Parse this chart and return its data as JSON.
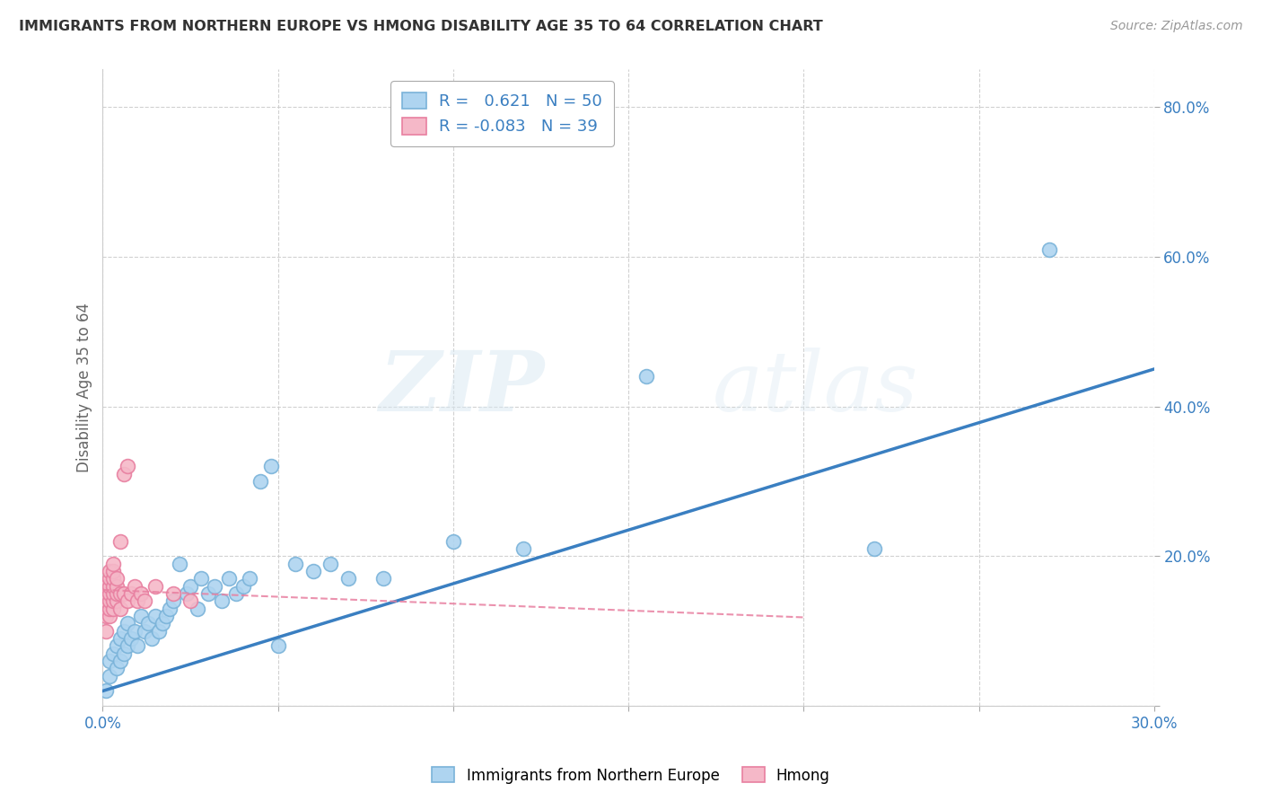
{
  "title": "IMMIGRANTS FROM NORTHERN EUROPE VS HMONG DISABILITY AGE 35 TO 64 CORRELATION CHART",
  "source": "Source: ZipAtlas.com",
  "ylabel": "Disability Age 35 to 64",
  "xlim": [
    0.0,
    0.3
  ],
  "ylim": [
    0.0,
    0.85
  ],
  "xticks": [
    0.0,
    0.05,
    0.1,
    0.15,
    0.2,
    0.25,
    0.3
  ],
  "xticklabels": [
    "0.0%",
    "",
    "",
    "",
    "",
    "",
    "30.0%"
  ],
  "yticks": [
    0.0,
    0.2,
    0.4,
    0.6,
    0.8
  ],
  "yticklabels": [
    "",
    "20.0%",
    "40.0%",
    "60.0%",
    "80.0%"
  ],
  "r_blue": 0.621,
  "n_blue": 50,
  "r_pink": -0.083,
  "n_pink": 39,
  "blue_color": "#aed4f0",
  "blue_edge_color": "#7ab3d9",
  "pink_color": "#f5b8c8",
  "pink_edge_color": "#e87fa0",
  "trend_blue_color": "#3a7fc1",
  "trend_pink_color": "#e87fa0",
  "legend_label_blue": "Immigrants from Northern Europe",
  "legend_label_pink": "Hmong",
  "watermark_zip": "ZIP",
  "watermark_atlas": "atlas",
  "blue_x": [
    0.001,
    0.002,
    0.002,
    0.003,
    0.004,
    0.004,
    0.005,
    0.005,
    0.006,
    0.006,
    0.007,
    0.007,
    0.008,
    0.009,
    0.01,
    0.011,
    0.012,
    0.013,
    0.014,
    0.015,
    0.016,
    0.017,
    0.018,
    0.019,
    0.02,
    0.022,
    0.024,
    0.025,
    0.027,
    0.028,
    0.03,
    0.032,
    0.034,
    0.036,
    0.038,
    0.04,
    0.042,
    0.045,
    0.048,
    0.05,
    0.055,
    0.06,
    0.065,
    0.07,
    0.08,
    0.1,
    0.12,
    0.155,
    0.22,
    0.27
  ],
  "blue_y": [
    0.02,
    0.04,
    0.06,
    0.07,
    0.05,
    0.08,
    0.06,
    0.09,
    0.07,
    0.1,
    0.08,
    0.11,
    0.09,
    0.1,
    0.08,
    0.12,
    0.1,
    0.11,
    0.09,
    0.12,
    0.1,
    0.11,
    0.12,
    0.13,
    0.14,
    0.19,
    0.15,
    0.16,
    0.13,
    0.17,
    0.15,
    0.16,
    0.14,
    0.17,
    0.15,
    0.16,
    0.17,
    0.3,
    0.32,
    0.08,
    0.19,
    0.18,
    0.19,
    0.17,
    0.17,
    0.22,
    0.21,
    0.44,
    0.21,
    0.61
  ],
  "pink_x": [
    0.001,
    0.001,
    0.001,
    0.001,
    0.001,
    0.001,
    0.002,
    0.002,
    0.002,
    0.002,
    0.002,
    0.002,
    0.002,
    0.003,
    0.003,
    0.003,
    0.003,
    0.003,
    0.003,
    0.003,
    0.004,
    0.004,
    0.004,
    0.004,
    0.005,
    0.005,
    0.005,
    0.006,
    0.006,
    0.007,
    0.007,
    0.008,
    0.009,
    0.01,
    0.011,
    0.012,
    0.015,
    0.02,
    0.025
  ],
  "pink_y": [
    0.1,
    0.12,
    0.13,
    0.14,
    0.15,
    0.16,
    0.12,
    0.13,
    0.14,
    0.15,
    0.16,
    0.17,
    0.18,
    0.13,
    0.14,
    0.15,
    0.16,
    0.17,
    0.18,
    0.19,
    0.14,
    0.15,
    0.16,
    0.17,
    0.13,
    0.15,
    0.22,
    0.15,
    0.31,
    0.32,
    0.14,
    0.15,
    0.16,
    0.14,
    0.15,
    0.14,
    0.16,
    0.15,
    0.14
  ]
}
